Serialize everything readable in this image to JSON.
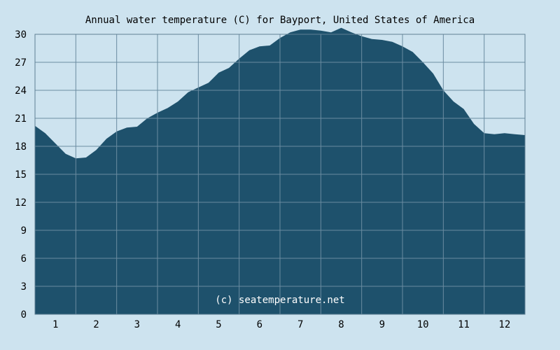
{
  "chart_data": {
    "type": "area",
    "title": "Annual water temperature (C) for Bayport, United States of America",
    "xlabel": "",
    "ylabel": "",
    "x_tick_labels": [
      "1",
      "2",
      "3",
      "4",
      "5",
      "6",
      "7",
      "8",
      "9",
      "10",
      "11",
      "12"
    ],
    "y_tick_labels": [
      "0",
      "3",
      "6",
      "9",
      "12",
      "15",
      "18",
      "21",
      "24",
      "27",
      "30"
    ],
    "xlim": [
      0.5,
      12.5
    ],
    "ylim": [
      0,
      30
    ],
    "grid": true,
    "watermark": "(c) seatemperature.net",
    "colors": {
      "fill": "#1e516c",
      "grid": "#6b8ca1",
      "background": "#cde3ef"
    },
    "series": [
      {
        "x": [
          0.5,
          0.75,
          1.0,
          1.25,
          1.5,
          1.75,
          2.0,
          2.25,
          2.5,
          2.75,
          3.0,
          3.25,
          3.5,
          3.75,
          4.0,
          4.25,
          4.5,
          4.75,
          5.0,
          5.25,
          5.5,
          5.75,
          6.0,
          6.25,
          6.5,
          6.75,
          7.0,
          7.25,
          7.5,
          7.75,
          8.0,
          8.25,
          8.5,
          8.75,
          9.0,
          9.25,
          9.5,
          9.75,
          10.0,
          10.25,
          10.5,
          10.75,
          11.0,
          11.25,
          11.5,
          11.75,
          12.0,
          12.25,
          12.5
        ],
        "values": [
          20.2,
          19.4,
          18.3,
          17.2,
          16.7,
          16.8,
          17.6,
          18.8,
          19.6,
          20.0,
          20.1,
          21.0,
          21.6,
          22.1,
          22.8,
          23.8,
          24.3,
          24.8,
          25.9,
          26.4,
          27.4,
          28.3,
          28.7,
          28.8,
          29.6,
          30.2,
          30.5,
          30.5,
          30.4,
          30.2,
          30.7,
          30.2,
          29.8,
          29.5,
          29.4,
          29.2,
          28.7,
          28.1,
          27.0,
          25.8,
          24.0,
          22.8,
          22.0,
          20.4,
          19.4,
          19.3,
          19.4,
          19.3,
          19.2
        ]
      }
    ]
  }
}
